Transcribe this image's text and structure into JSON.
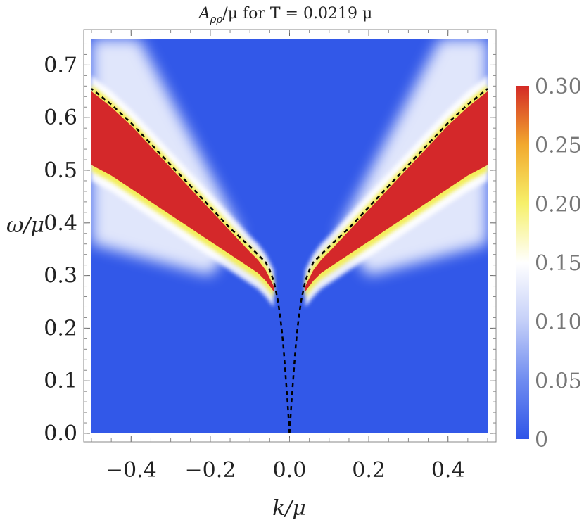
{
  "chart_data": {
    "type": "heatmap",
    "title": "A_ρρ/μ for T = 0.0219 μ",
    "title_parts": {
      "base": "A",
      "sub": "ρρ",
      "rest": "/μ for T = 0.0219 μ"
    },
    "xlabel": "k/μ",
    "ylabel": "ω/μ",
    "xlim": [
      -0.5,
      0.5
    ],
    "ylim": [
      0.0,
      0.75
    ],
    "x_ticks": [
      {
        "value": -0.4,
        "label": "−0.4"
      },
      {
        "value": -0.2,
        "label": "−0.2"
      },
      {
        "value": 0.0,
        "label": "0.0"
      },
      {
        "value": 0.2,
        "label": "0.2"
      },
      {
        "value": 0.4,
        "label": "0.4"
      }
    ],
    "y_ticks": [
      {
        "value": 0.0,
        "label": "0.0"
      },
      {
        "value": 0.1,
        "label": "0.1"
      },
      {
        "value": 0.2,
        "label": "0.2"
      },
      {
        "value": 0.3,
        "label": "0.3"
      },
      {
        "value": 0.4,
        "label": "0.4"
      },
      {
        "value": 0.5,
        "label": "0.5"
      },
      {
        "value": 0.6,
        "label": "0.6"
      },
      {
        "value": 0.7,
        "label": "0.7"
      }
    ],
    "colorbar": {
      "range": [
        0,
        0.3
      ],
      "ticks": [
        {
          "value": 0.0,
          "label": "0"
        },
        {
          "value": 0.05,
          "label": "0.05"
        },
        {
          "value": 0.1,
          "label": "0.10"
        },
        {
          "value": 0.15,
          "label": "0.15"
        },
        {
          "value": 0.2,
          "label": "0.20"
        },
        {
          "value": 0.25,
          "label": "0.25"
        },
        {
          "value": 0.3,
          "label": "0.30"
        }
      ],
      "colors": [
        "#2f55e8",
        "#6f8cf0",
        "#c4cff8",
        "#ffffff",
        "#f6f06a",
        "#f2a92e",
        "#d42a26"
      ]
    },
    "dashed_curve": {
      "k": [
        0.0,
        0.005,
        0.01,
        0.015,
        0.02,
        0.025,
        0.03,
        0.04,
        0.05,
        0.06,
        0.08,
        0.1,
        0.15,
        0.2,
        0.25,
        0.3,
        0.35,
        0.4,
        0.45,
        0.5
      ],
      "omega": [
        0.0,
        0.06,
        0.11,
        0.16,
        0.2,
        0.23,
        0.255,
        0.29,
        0.31,
        0.325,
        0.34,
        0.355,
        0.39,
        0.43,
        0.47,
        0.51,
        0.55,
        0.59,
        0.625,
        0.655
      ],
      "color": "#000000"
    },
    "band": {
      "k": [
        0.04,
        0.06,
        0.08,
        0.1,
        0.15,
        0.2,
        0.25,
        0.3,
        0.35,
        0.4,
        0.45,
        0.5
      ],
      "omega_upper": [
        0.28,
        0.31,
        0.33,
        0.345,
        0.385,
        0.425,
        0.465,
        0.505,
        0.545,
        0.585,
        0.62,
        0.65
      ],
      "omega_lower": [
        0.27,
        0.29,
        0.305,
        0.315,
        0.34,
        0.365,
        0.39,
        0.415,
        0.44,
        0.465,
        0.49,
        0.51
      ]
    }
  }
}
